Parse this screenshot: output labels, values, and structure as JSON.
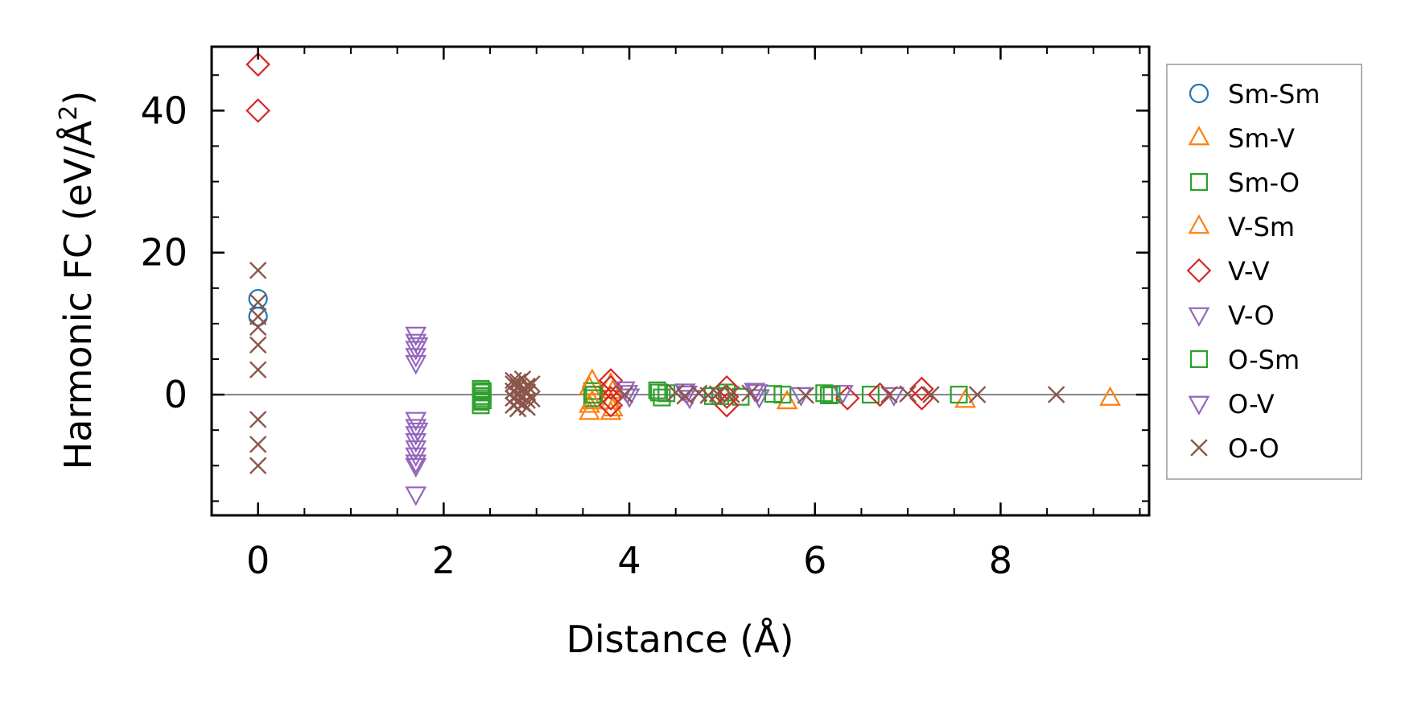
{
  "chart_data": {
    "type": "scatter",
    "title": "",
    "xlabel": "Distance (Å)",
    "ylabel_main": "Harmonic FC (eV/Å",
    "ylabel_sup": "2",
    "ylabel_close": ")",
    "xlim": [
      -0.5,
      9.6
    ],
    "ylim": [
      -17,
      49
    ],
    "xticks": [
      0,
      2,
      4,
      6,
      8
    ],
    "xtick_labels": [
      "0",
      "2",
      "4",
      "6",
      "8"
    ],
    "yticks": [
      0,
      20,
      40
    ],
    "ytick_labels": [
      "0",
      "20",
      "40"
    ],
    "grid": false,
    "zero_line": true,
    "legend_position": "outside-right",
    "series": [
      {
        "name": "Sm-Sm",
        "marker": "circle",
        "fill": false,
        "color": "#1f77b4",
        "x": [
          0,
          0
        ],
        "y": [
          13.5,
          11.0
        ]
      },
      {
        "name": "Sm-V",
        "marker": "triangle-up",
        "fill": false,
        "color": "#ff7f0e",
        "x": [
          3.57,
          3.57,
          3.57,
          3.8,
          3.8,
          3.8,
          5.7,
          7.62,
          9.18
        ],
        "y": [
          -2.5,
          -1.5,
          1.0,
          -2.5,
          -1.0,
          1.5,
          -1.0,
          -0.8,
          -0.5
        ]
      },
      {
        "name": "Sm-O",
        "marker": "square",
        "fill": false,
        "color": "#2ca02c",
        "x": [
          2.4,
          2.4,
          2.4,
          2.4,
          2.4,
          3.6,
          3.6,
          4.3,
          4.35,
          4.4,
          4.9,
          5.05,
          5.2,
          5.65,
          6.1,
          6.15,
          6.6,
          7.55
        ],
        "y": [
          -1.5,
          -0.5,
          0.3,
          0.8,
          -1.0,
          0.5,
          -0.5,
          0.6,
          -0.4,
          0.2,
          -0.2,
          0.3,
          -0.3,
          0.0,
          0.2,
          -0.1,
          0.0,
          0.0
        ]
      },
      {
        "name": "V-Sm",
        "marker": "triangle-up",
        "fill": false,
        "color": "#ff7f0e",
        "x": [
          3.6,
          3.6,
          3.82,
          3.82
        ],
        "y": [
          2.0,
          -1.0,
          0.5,
          -2.0
        ]
      },
      {
        "name": "V-V",
        "marker": "diamond",
        "fill": false,
        "color": "#d62728",
        "x": [
          0,
          0,
          3.8,
          3.8,
          3.8,
          3.8,
          5.05,
          5.05,
          5.05,
          6.35,
          6.7,
          7.15,
          7.15
        ],
        "y": [
          46.5,
          40.0,
          2.0,
          1.0,
          -0.5,
          -1.5,
          1.0,
          -0.3,
          -1.5,
          -0.5,
          0.0,
          -0.5,
          0.8
        ]
      },
      {
        "name": "V-O",
        "marker": "triangle-down",
        "fill": false,
        "color": "#9467bd",
        "x": [
          1.7,
          1.7,
          1.7,
          1.7,
          1.7,
          1.7,
          1.7,
          1.7,
          1.7,
          1.7,
          1.7,
          1.7,
          1.7,
          1.7,
          3.95,
          4.0,
          4.6,
          4.65,
          5.35,
          5.4,
          6.3,
          6.85
        ],
        "y": [
          8.5,
          7.5,
          6.5,
          5.5,
          4.5,
          -3.5,
          -4.5,
          -5.5,
          -6.5,
          -7.5,
          -8.5,
          -9.5,
          -10.0,
          -14.0,
          0.8,
          -0.2,
          0.5,
          -0.4,
          0.6,
          -0.3,
          0.3,
          0.0
        ]
      },
      {
        "name": "O-Sm",
        "marker": "square",
        "fill": false,
        "color": "#2ca02c",
        "x": [
          2.42,
          2.42,
          2.42,
          3.62,
          4.32,
          4.98,
          5.55,
          6.18
        ],
        "y": [
          0.5,
          -0.8,
          -0.2,
          0.0,
          0.3,
          -0.2,
          0.1,
          0.0
        ]
      },
      {
        "name": "O-V",
        "marker": "triangle-down",
        "fill": false,
        "color": "#9467bd",
        "x": [
          1.72,
          1.72,
          3.98,
          4.62,
          5.38,
          5.85
        ],
        "y": [
          7.0,
          -5.0,
          0.3,
          0.2,
          0.4,
          0.0
        ]
      },
      {
        "name": "O-O",
        "marker": "x",
        "fill": false,
        "color": "#8c564b",
        "x": [
          0,
          0,
          0,
          0,
          0,
          0,
          0,
          0,
          0,
          2.75,
          2.75,
          2.75,
          2.75,
          2.75,
          2.8,
          2.8,
          2.8,
          2.8,
          2.8,
          2.85,
          2.85,
          2.85,
          2.85,
          2.9,
          2.9,
          2.9,
          2.9,
          2.9,
          2.95,
          2.95,
          3.95,
          4.5,
          4.6,
          4.75,
          4.85,
          4.95,
          5.1,
          5.3,
          5.9,
          6.8,
          7.0,
          7.25,
          7.75,
          8.6
        ],
        "y": [
          17.5,
          13.0,
          11.0,
          9.5,
          7.0,
          3.5,
          -3.5,
          -7.0,
          -10.0,
          1.5,
          0.5,
          -0.5,
          -1.5,
          2.0,
          1.0,
          0.0,
          -1.0,
          -2.0,
          1.8,
          0.7,
          -0.3,
          -1.3,
          2.2,
          1.2,
          0.2,
          -0.8,
          -1.8,
          0.4,
          1.5,
          -0.6,
          0.0,
          0.3,
          -0.2,
          0.2,
          -0.1,
          0.1,
          0.0,
          0.2,
          -0.1,
          0.0,
          0.1,
          0.0,
          0.0,
          0.0
        ]
      }
    ]
  }
}
